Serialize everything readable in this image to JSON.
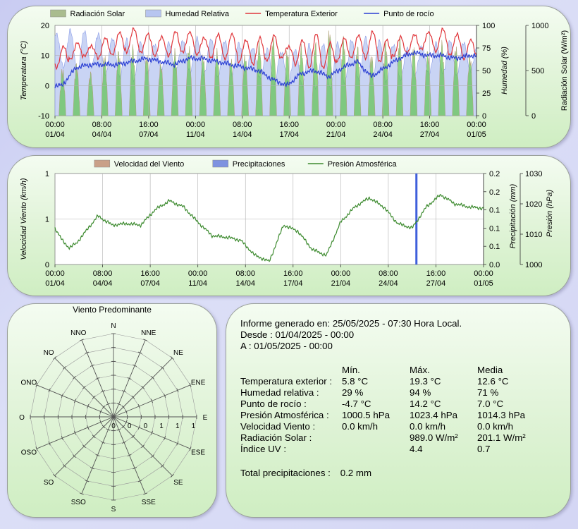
{
  "chart_data": [
    {
      "type": "line",
      "legend": [
        "Radiación Solar",
        "Humedad Relativa",
        "Temperatura Exterior",
        "Punto de rocío"
      ],
      "legend_placement": "top",
      "ylabel_left": "Temperatura (°C)",
      "ylabel_right1": "Humedad (%)",
      "ylabel_right2": "Radiación Solar (W/m²)",
      "ylim_left": [
        -10,
        20
      ],
      "ylim_right1": [
        0,
        100
      ],
      "ylim_right2": [
        0,
        1000
      ],
      "yticks_left": [
        "20",
        "10",
        "0",
        "-10"
      ],
      "yticks_right1": [
        "100",
        "75",
        "50",
        "25",
        "0"
      ],
      "yticks_right2": [
        "1000",
        "500",
        "0"
      ],
      "xticks": [
        {
          "t": "00:00",
          "d": "01/04"
        },
        {
          "t": "08:00",
          "d": "04/04"
        },
        {
          "t": "16:00",
          "d": "07/04"
        },
        {
          "t": "00:00",
          "d": "11/04"
        },
        {
          "t": "08:00",
          "d": "14/04"
        },
        {
          "t": "16:00",
          "d": "17/04"
        },
        {
          "t": "00:00",
          "d": "21/04"
        },
        {
          "t": "08:00",
          "d": "24/04"
        },
        {
          "t": "16:00",
          "d": "27/04"
        },
        {
          "t": "00:00",
          "d": "01/05"
        }
      ],
      "grid": true,
      "colors": {
        "radiacion": "#a9bc8e",
        "humedad": "#b7c5f0",
        "temperatura": "#e0363b",
        "rocio": "#2a3ed3"
      },
      "series": [
        {
          "name": "Temperatura Exterior",
          "daily_max": [
            13,
            14,
            13,
            16,
            18,
            19,
            17,
            16,
            18,
            18,
            16,
            17,
            17,
            15,
            16,
            17,
            13,
            15,
            17,
            14,
            16,
            17,
            18,
            15,
            16,
            17,
            18,
            19,
            17,
            15
          ],
          "daily_min": [
            6,
            9,
            10,
            9,
            10,
            11,
            11,
            10,
            10,
            11,
            10,
            9,
            9,
            8,
            7,
            8,
            9,
            7,
            6,
            6,
            8,
            9,
            9,
            8,
            10,
            11,
            12,
            11,
            10,
            9
          ]
        },
        {
          "name": "Punto de rocío",
          "daily_values": [
            0,
            6,
            7,
            7,
            7,
            8,
            9,
            8,
            7,
            9,
            9,
            8,
            7,
            6,
            5,
            2,
            0,
            4,
            5,
            3,
            6,
            8,
            3,
            6,
            9,
            11,
            10,
            10,
            9,
            10
          ]
        },
        {
          "name": "Humedad Relativa",
          "daily_max_pct": [
            90,
            94,
            94,
            92,
            86,
            84,
            80,
            78,
            82,
            84,
            86,
            84,
            82,
            80,
            76,
            74,
            70,
            72,
            78,
            80,
            82,
            84,
            86,
            82,
            78,
            76,
            78,
            80,
            82,
            80
          ],
          "daily_min_pct": [
            55,
            50,
            52,
            45,
            42,
            40,
            48,
            52,
            50,
            48,
            46,
            44,
            46,
            48,
            40,
            35,
            38,
            34,
            30,
            29,
            36,
            40,
            42,
            38,
            40,
            44,
            46,
            48,
            46,
            50
          ]
        },
        {
          "name": "Radiación Solar",
          "daily_peak": [
            550,
            600,
            500,
            700,
            750,
            800,
            700,
            600,
            750,
            800,
            700,
            750,
            650,
            700,
            850,
            900,
            750,
            800,
            850,
            989,
            900,
            800,
            700,
            850,
            900,
            800,
            750,
            850,
            800,
            700
          ]
        }
      ]
    },
    {
      "type": "line",
      "legend": [
        "Velocidad del Viento",
        "Precipitaciones",
        "Presión Atmosférica"
      ],
      "legend_placement": "top",
      "ylabel_left": "Velocidad Viento (km/h)",
      "ylabel_right1": "Precipitación (mm)",
      "ylabel_right2": "Presión (hPa)",
      "ylim_left": [
        0,
        1
      ],
      "ylim_right1": [
        0,
        0.2
      ],
      "ylim_right2": [
        1000,
        1030
      ],
      "yticks_left": [
        "1",
        "1",
        "0"
      ],
      "yticks_right1": [
        "0.2",
        "0.2",
        "0.1",
        "0.1",
        "0.1",
        "0.0"
      ],
      "yticks_right2": [
        "1030",
        "1020",
        "1010",
        "1000"
      ],
      "xticks": [
        {
          "t": "00:00",
          "d": "01/04"
        },
        {
          "t": "08:00",
          "d": "04/04"
        },
        {
          "t": "16:00",
          "d": "07/04"
        },
        {
          "t": "00:00",
          "d": "11/04"
        },
        {
          "t": "08:00",
          "d": "14/04"
        },
        {
          "t": "16:00",
          "d": "17/04"
        },
        {
          "t": "00:00",
          "d": "21/04"
        },
        {
          "t": "08:00",
          "d": "24/04"
        },
        {
          "t": "16:00",
          "d": "27/04"
        },
        {
          "t": "00:00",
          "d": "01/05"
        }
      ],
      "grid": true,
      "colors": {
        "viento": "#c9a088",
        "precip": "#3f5fdb",
        "presion": "#3c8a2e"
      },
      "series": [
        {
          "name": "Presión Atmosférica",
          "x_day": [
            0,
            0.5,
            1,
            1.5,
            2,
            3,
            4,
            5,
            6,
            7,
            8,
            9,
            10,
            11,
            12,
            13,
            14,
            15,
            16,
            17,
            18,
            19,
            20,
            21,
            22,
            23,
            24,
            25,
            26,
            27,
            28,
            29,
            30
          ],
          "values": [
            1012,
            1008,
            1005.5,
            1007,
            1010,
            1016,
            1013,
            1013.5,
            1013,
            1018,
            1021,
            1019,
            1014,
            1009.5,
            1009,
            1008,
            1003,
            1001,
            1013,
            1011,
            1005,
            1003,
            1014,
            1019,
            1022,
            1019,
            1013.5,
            1012,
            1019,
            1023,
            1020,
            1019,
            1018.5
          ]
        },
        {
          "name": "Precipitaciones",
          "spikes": [
            {
              "x_day": 25.3,
              "mm": 0.2
            }
          ]
        }
      ]
    },
    {
      "type": "radar",
      "title": "Viento Predominante",
      "directions": [
        "N",
        "NNE",
        "NE",
        "ENE",
        "E",
        "ESE",
        "SE",
        "SSE",
        "S",
        "SSO",
        "SO",
        "OSO",
        "O",
        "ONO",
        "NO",
        "NNO"
      ],
      "ring_labels": [
        "0",
        "0",
        "0",
        "1",
        "1",
        "1"
      ],
      "values": [
        0,
        0,
        0,
        0,
        0,
        0,
        0,
        0,
        0,
        0,
        0,
        0,
        0,
        0,
        0,
        0
      ]
    }
  ],
  "report": {
    "generated": "Informe generado en: 25/05/2025 - 07:30 Hora Local.",
    "from": "Desde : 01/04/2025 - 00:00",
    "to": "A : 01/05/2025 - 00:00",
    "headers": [
      "Mín.",
      "Máx.",
      "Media"
    ],
    "rows": [
      {
        "label": "Temperatura exterior :",
        "min": "5.8 °C",
        "max": "19.3 °C",
        "avg": "12.6 °C"
      },
      {
        "label": "Humedad relativa :",
        "min": "29 %",
        "max": "94 %",
        "avg": "71 %"
      },
      {
        "label": "Punto de rocío :",
        "min": "-4.7 °C",
        "max": "14.2 °C",
        "avg": "7.0 °C"
      },
      {
        "label": "Presión Atmosférica :",
        "min": "1000.5 hPa",
        "max": "1023.4 hPa",
        "avg": "1014.3 hPa"
      },
      {
        "label": "Velocidad Viento :",
        "min": "0.0 km/h",
        "max": "0.0 km/h",
        "avg": "0.0 km/h"
      },
      {
        "label": "Radiación Solar :",
        "min": "",
        "max": "989.0 W/m²",
        "avg": "201.1 W/m²"
      },
      {
        "label": "Índice UV :",
        "min": "",
        "max": "4.4",
        "avg": "0.7"
      }
    ],
    "precip_label": "Total precipitaciones :",
    "precip_value": "0.2 mm"
  }
}
